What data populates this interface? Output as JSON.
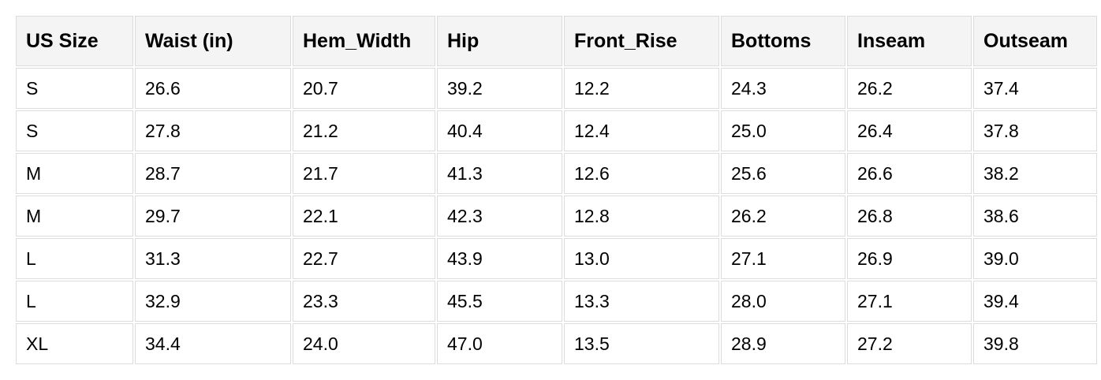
{
  "table": {
    "headers": [
      "US Size",
      "Waist (in)",
      "Hem_Width",
      "Hip",
      "Front_Rise",
      "Bottoms",
      "Inseam",
      "Outseam"
    ],
    "rows": [
      [
        "S",
        "26.6",
        "20.7",
        "39.2",
        "12.2",
        "24.3",
        "26.2",
        "37.4"
      ],
      [
        "S",
        "27.8",
        "21.2",
        "40.4",
        "12.4",
        "25.0",
        "26.4",
        "37.8"
      ],
      [
        "M",
        "28.7",
        "21.7",
        "41.3",
        "12.6",
        "25.6",
        "26.6",
        "38.2"
      ],
      [
        "M",
        "29.7",
        "22.1",
        "42.3",
        "12.8",
        "26.2",
        "26.8",
        "38.6"
      ],
      [
        "L",
        "31.3",
        "22.7",
        "43.9",
        "13.0",
        "27.1",
        "26.9",
        "39.0"
      ],
      [
        "L",
        "32.9",
        "23.3",
        "45.5",
        "13.3",
        "28.0",
        "27.1",
        "39.4"
      ],
      [
        "XL",
        "34.4",
        "24.0",
        "47.0",
        "13.5",
        "28.9",
        "27.2",
        "39.8"
      ]
    ]
  },
  "colors": {
    "header_bg": "#f4f4f4",
    "border": "#dcdcdc"
  }
}
